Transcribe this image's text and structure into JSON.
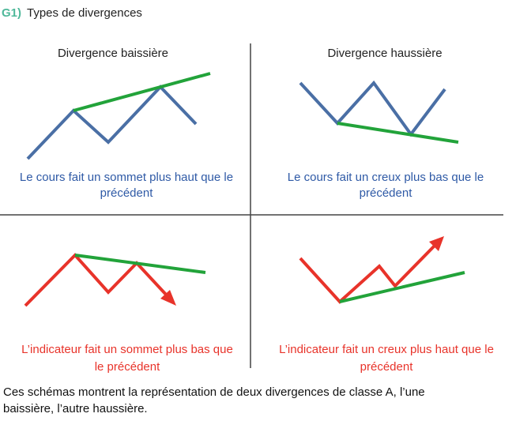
{
  "header": {
    "label": "G1)",
    "title": "Types de divergences"
  },
  "panels": [
    {
      "title": "Divergence baissière",
      "caption": [
        "Le cours fait un sommet plus haut que le",
        "précédent"
      ]
    },
    {
      "title": "Divergence haussière",
      "caption": [
        "Le cours fait un creux plus bas que le",
        "précédent"
      ]
    },
    {
      "caption": [
        "L’indicateur fait un sommet plus bas que",
        "le précédent"
      ]
    },
    {
      "caption": [
        "L’indicateur fait un creux plus haut que le",
        "précédent"
      ]
    }
  ],
  "footer": [
    "Ces schémas montrent la représentation de deux divergences de classe A, l’une",
    "baissière, l’autre haussière."
  ]
}
